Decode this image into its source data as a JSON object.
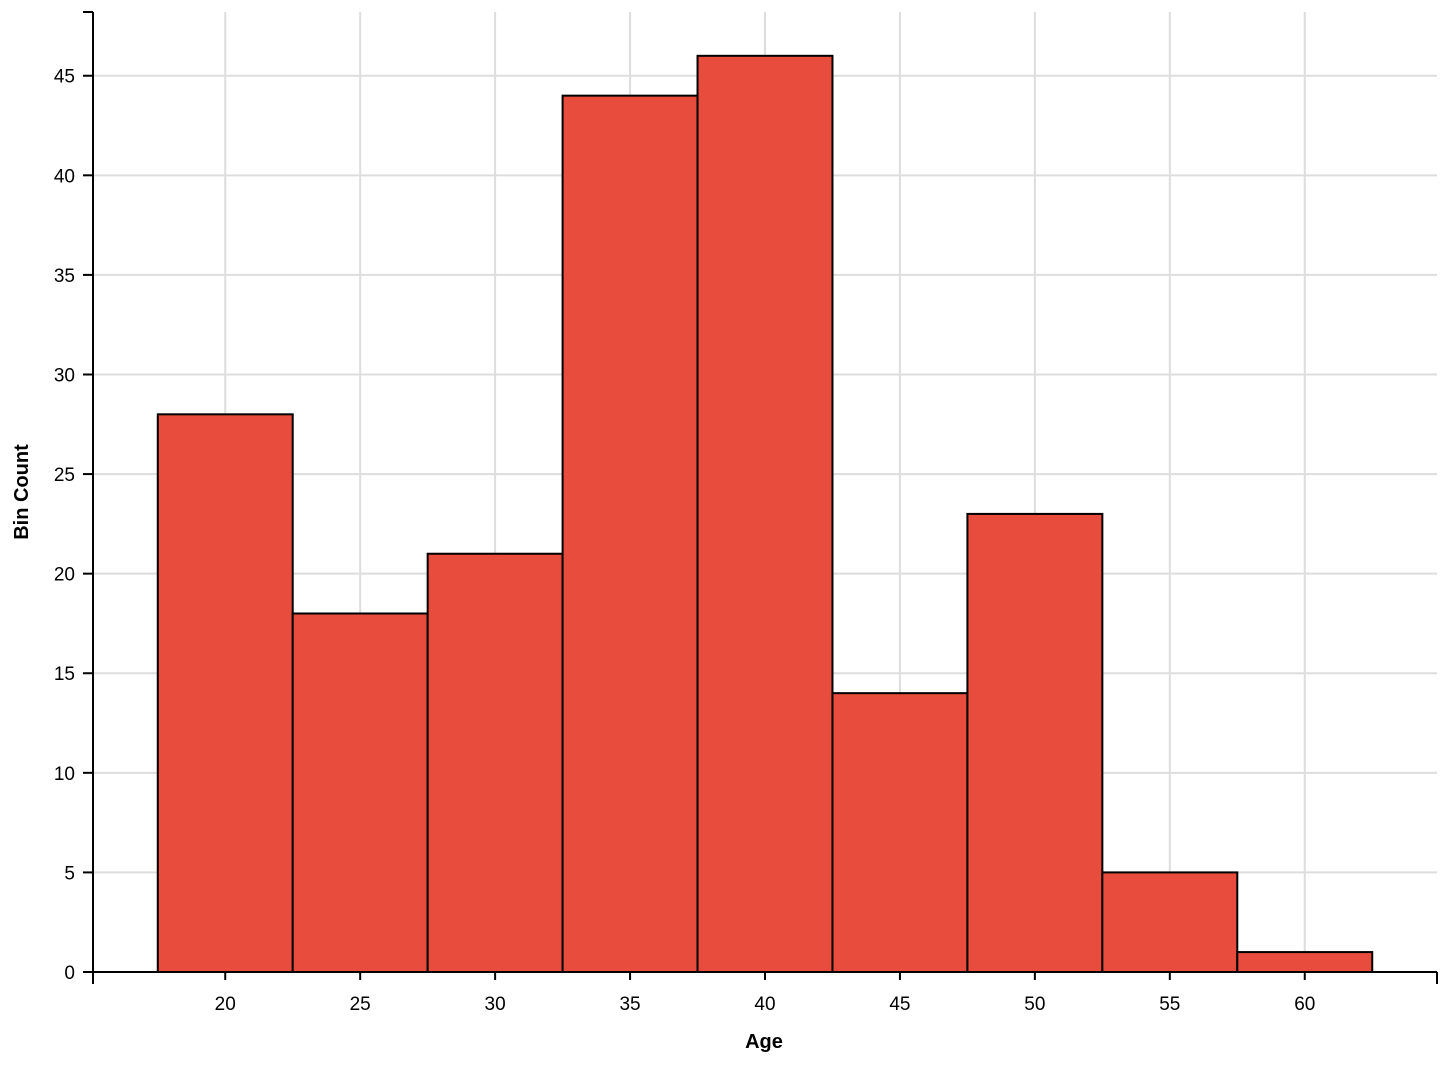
{
  "chart_data": {
    "type": "bar",
    "subtype": "histogram",
    "xlabel": "Age",
    "ylabel": "Bin Count",
    "x_ticks": [
      20,
      25,
      30,
      35,
      40,
      45,
      50,
      55,
      60
    ],
    "y_ticks": [
      0,
      5,
      10,
      15,
      20,
      25,
      30,
      35,
      40,
      45
    ],
    "xlim": [
      15.1,
      64.9
    ],
    "ylim": [
      0,
      48.2
    ],
    "bin_width": 5,
    "bins": [
      {
        "start": 17.5,
        "end": 22.5,
        "count": 28
      },
      {
        "start": 22.5,
        "end": 27.5,
        "count": 18
      },
      {
        "start": 27.5,
        "end": 32.5,
        "count": 21
      },
      {
        "start": 32.5,
        "end": 37.5,
        "count": 44
      },
      {
        "start": 37.5,
        "end": 42.5,
        "count": 46
      },
      {
        "start": 42.5,
        "end": 47.5,
        "count": 14
      },
      {
        "start": 47.5,
        "end": 52.5,
        "count": 23
      },
      {
        "start": 52.5,
        "end": 57.5,
        "count": 5
      },
      {
        "start": 57.5,
        "end": 62.5,
        "count": 1
      }
    ],
    "bar_color": "#e74c3c",
    "bar_stroke": "#000000",
    "grid": true,
    "grid_color": "#dddddd"
  }
}
